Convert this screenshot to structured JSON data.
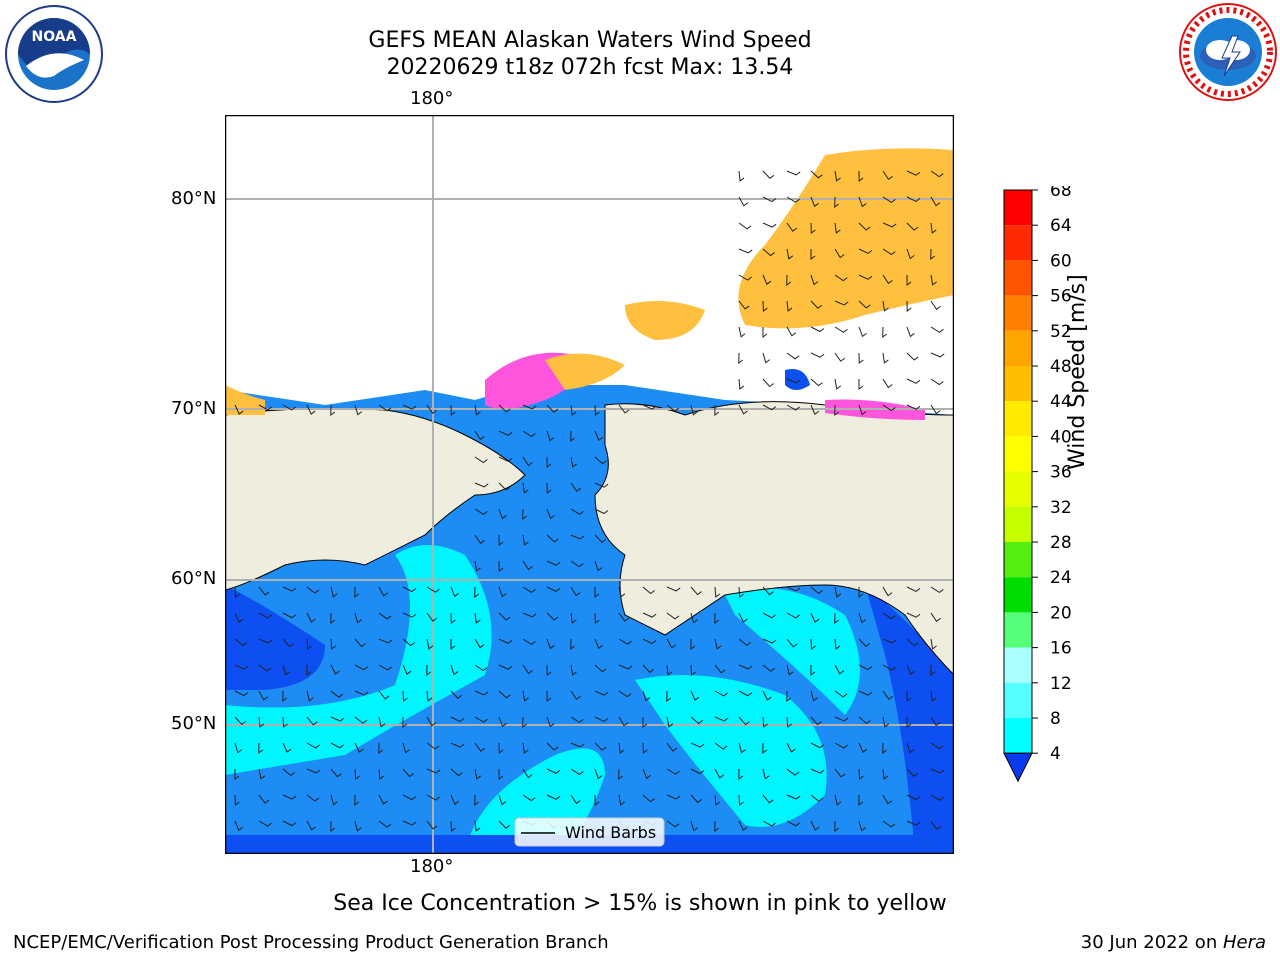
{
  "title": {
    "line1": "GEFS MEAN Alaskan Waters Wind Speed",
    "line2": "20220629 t18z 072h fcst   Max: 13.54"
  },
  "logos": {
    "left": {
      "text": "NOAA",
      "ring_text": "NATIONAL OCEANIC AND ATMOSPHERIC ADMINISTRATION · U.S. DEPARTMENT OF COMMERCE"
    },
    "right": {
      "ring_text": "NATIONAL WEATHER SERVICE"
    }
  },
  "map": {
    "lon_label_top": "180°",
    "lon_label_bottom": "180°",
    "lat_labels": [
      "80°N",
      "70°N",
      "60°N",
      "50°N"
    ],
    "legend_label": "Wind Barbs",
    "colors": {
      "land": "#efedde",
      "ocean_low": "#0d4ff0",
      "ocean_mid": "#1e8cf5",
      "ocean_high": "#00f5ff",
      "ice_pink": "#ff55dd",
      "ice_yellow": "#ffbf3f",
      "grid": "#b0b0b0"
    }
  },
  "colorbar": {
    "label": "Wind Speed [m/s]",
    "ticks": [
      "68",
      "64",
      "60",
      "56",
      "52",
      "48",
      "44",
      "40",
      "36",
      "32",
      "28",
      "24",
      "20",
      "16",
      "12",
      "8",
      "4"
    ],
    "colors": [
      "#ff0000",
      "#ff2a00",
      "#ff5500",
      "#ff7f00",
      "#ffa500",
      "#ffbf00",
      "#ffea00",
      "#ffff00",
      "#e5ff00",
      "#c4ff00",
      "#55ee11",
      "#00dd00",
      "#55ff77",
      "#aaffff",
      "#55ffff",
      "#00ffff",
      "#0b80f5",
      "#0a3af0"
    ]
  },
  "caption": "Sea Ice Concentration > 15% is shown in pink to yellow",
  "footer": {
    "left": "NCEP/EMC/Verification Post Processing Product Generation Branch",
    "right_date": "30 Jun 2022 on ",
    "right_host": "Hera"
  }
}
